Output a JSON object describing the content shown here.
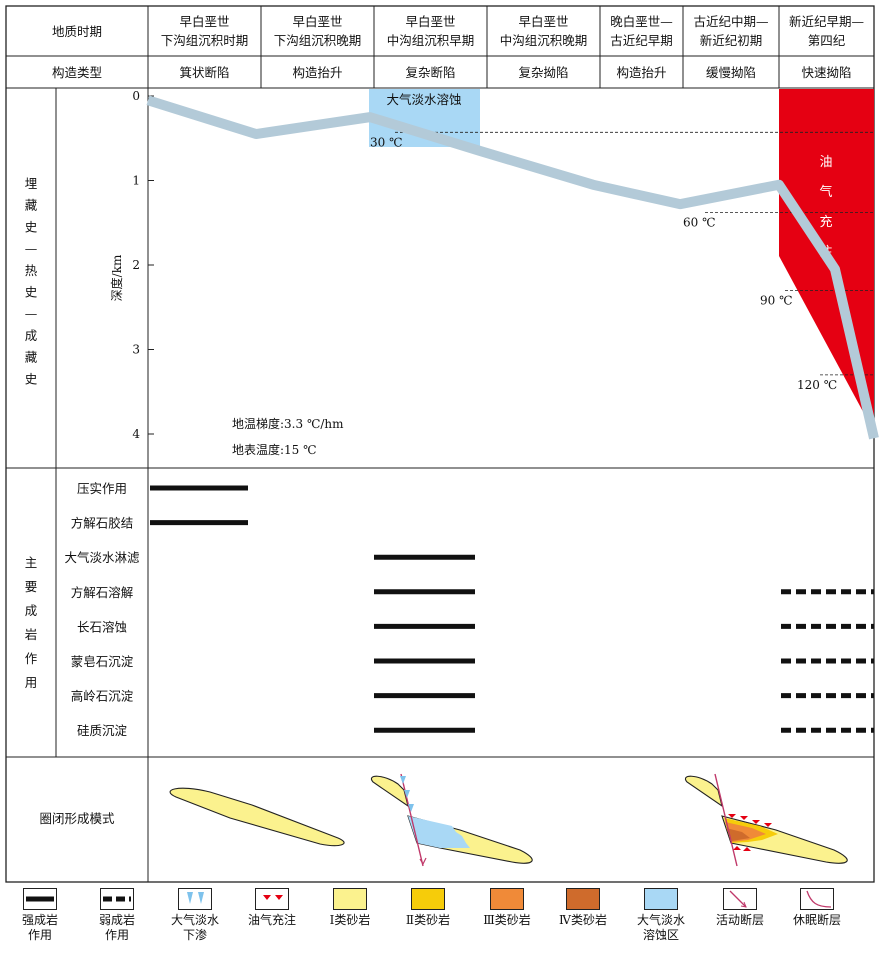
{
  "header": {
    "geo_period_label": "地质时期",
    "tectonic_type_label": "构造类型",
    "periods": [
      {
        "line1": "早白垩世",
        "line2": "下沟组沉积时期",
        "tectonic": "箕状断陷"
      },
      {
        "line1": "早白垩世",
        "line2": "下沟组沉积晚期",
        "tectonic": "构造抬升"
      },
      {
        "line1": "早白垩世",
        "line2": "中沟组沉积早期",
        "tectonic": "复杂断陷"
      },
      {
        "line1": "早白垩世",
        "line2": "中沟组沉积晚期",
        "tectonic": "复杂拗陷"
      },
      {
        "line1": "晚白垩世—",
        "line2": "古近纪早期",
        "tectonic": "构造抬升"
      },
      {
        "line1": "古近纪中期—",
        "line2": "新近纪初期",
        "tectonic": "缓慢拗陷"
      },
      {
        "line1": "新近纪早期—",
        "line2": "第四纪",
        "tectonic": "快速拗陷"
      }
    ]
  },
  "burial": {
    "section_label": "埋藏史—热史—成藏史",
    "depth_axis_label": "深度/km",
    "depth_ticks": [
      "0",
      "1",
      "2",
      "3",
      "4"
    ],
    "burial_curve_depth_km": [
      0.05,
      0.45,
      0.25,
      0.65,
      1.05,
      1.28,
      1.05,
      2.05,
      4.05
    ],
    "freshwater_label": "大气淡水溶蚀",
    "oil_label_chars": [
      "油",
      "气",
      "充",
      "注"
    ],
    "isotherms": [
      {
        "label": "30 ℃",
        "depth_km": 0.43
      },
      {
        "label": "60 ℃",
        "depth_km": 1.38
      },
      {
        "label": "90 ℃",
        "depth_km": 2.3
      },
      {
        "label": "120 ℃",
        "depth_km": 3.3
      }
    ],
    "gradient_text": "地温梯度:3.3 ℃/hm",
    "surface_temp_text": "地表温度:15 ℃"
  },
  "diagenesis": {
    "section_label": "主要成岩作用",
    "processes": [
      {
        "name": "压实作用",
        "strong_periods": [
          0
        ],
        "weak_periods": []
      },
      {
        "name": "方解石胶结",
        "strong_periods": [
          0
        ],
        "weak_periods": []
      },
      {
        "name": "大气淡水淋滤",
        "strong_periods": [
          2
        ],
        "weak_periods": []
      },
      {
        "name": "方解石溶解",
        "strong_periods": [
          2
        ],
        "weak_periods": [
          6
        ]
      },
      {
        "name": "长石溶蚀",
        "strong_periods": [
          2
        ],
        "weak_periods": [
          6
        ]
      },
      {
        "name": "蒙皂石沉淀",
        "strong_periods": [
          2
        ],
        "weak_periods": [
          6
        ]
      },
      {
        "name": "高岭石沉淀",
        "strong_periods": [
          2
        ],
        "weak_periods": [
          6
        ]
      },
      {
        "name": "硅质沉淀",
        "strong_periods": [
          2
        ],
        "weak_periods": [
          6
        ]
      }
    ]
  },
  "trap": {
    "section_label": "圈闭形成模式"
  },
  "colors": {
    "sandstone_1": "#fbf28e",
    "sandstone_2": "#f6cc0a",
    "sandstone_3": "#f08a38",
    "sandstone_4": "#cf6b2c",
    "freshwater_zone": "#a9d8f5",
    "oil_fill": "#e50012",
    "burial_curve": "#b3cad8",
    "fault": "#c0396a"
  },
  "legend": [
    {
      "icon": "strong-line",
      "label": [
        "强成岩",
        "作用"
      ]
    },
    {
      "icon": "weak-line",
      "label": [
        "弱成岩",
        "作用"
      ]
    },
    {
      "icon": "water-seep",
      "label": [
        "大气淡水",
        "下渗"
      ]
    },
    {
      "icon": "oil-charge",
      "label": [
        "油气充注"
      ]
    },
    {
      "icon": "sand-1",
      "label": [
        "Ⅰ类砂岩"
      ]
    },
    {
      "icon": "sand-2",
      "label": [
        "Ⅱ类砂岩"
      ]
    },
    {
      "icon": "sand-3",
      "label": [
        "Ⅲ类砂岩"
      ]
    },
    {
      "icon": "sand-4",
      "label": [
        "Ⅳ类砂岩"
      ]
    },
    {
      "icon": "freshwater-zone",
      "label": [
        "大气淡水",
        "溶蚀区"
      ]
    },
    {
      "icon": "active-fault",
      "label": [
        "活动断层"
      ]
    },
    {
      "icon": "dormant-fault",
      "label": [
        "休眠断层"
      ]
    }
  ]
}
